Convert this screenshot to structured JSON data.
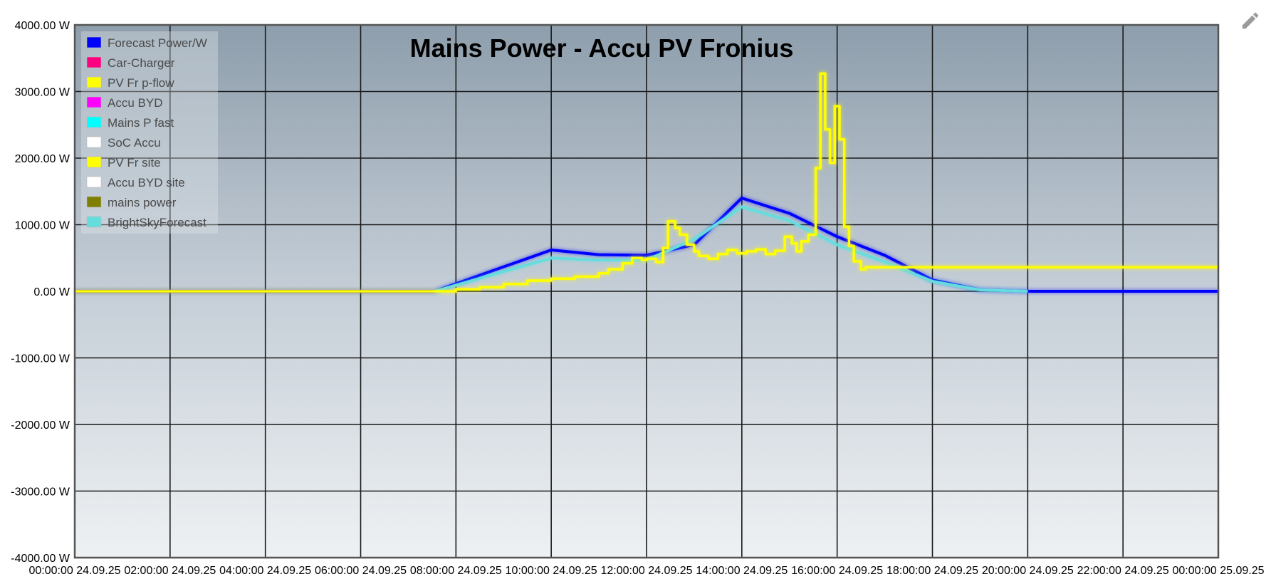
{
  "chart_data": {
    "type": "line",
    "title": "Mains Power - Accu PV Fronius",
    "ylabel": "",
    "xlabel": "",
    "ylim": [
      -4000,
      4000
    ],
    "grid": true,
    "legend_position": "top-left",
    "y_ticks": [
      {
        "value": 4000,
        "label": "4000.00 W"
      },
      {
        "value": 3000,
        "label": "3000.00 W"
      },
      {
        "value": 2000,
        "label": "2000.00 W"
      },
      {
        "value": 1000,
        "label": "1000.00 W"
      },
      {
        "value": 0,
        "label": "0.00 W"
      },
      {
        "value": -1000,
        "label": "-1000.00 W"
      },
      {
        "value": -2000,
        "label": "-2000.00 W"
      },
      {
        "value": -3000,
        "label": "-3000.00 W"
      },
      {
        "value": -4000,
        "label": "-4000.00 W"
      }
    ],
    "x_ticks": [
      {
        "hour": 0,
        "label": "00:00:00 24.09.25"
      },
      {
        "hour": 2,
        "label": "02:00:00 24.09.25"
      },
      {
        "hour": 4,
        "label": "04:00:00 24.09.25"
      },
      {
        "hour": 6,
        "label": "06:00:00 24.09.25"
      },
      {
        "hour": 8,
        "label": "08:00:00 24.09.25"
      },
      {
        "hour": 10,
        "label": "10:00:00 24.09.25"
      },
      {
        "hour": 12,
        "label": "12:00:00 24.09.25"
      },
      {
        "hour": 14,
        "label": "14:00:00 24.09.25"
      },
      {
        "hour": 16,
        "label": "16:00:00 24.09.25"
      },
      {
        "hour": 18,
        "label": "18:00:00 24.09.25"
      },
      {
        "hour": 20,
        "label": "20:00:00 24.09.25"
      },
      {
        "hour": 22,
        "label": "22:00:00 24.09.25"
      },
      {
        "hour": 24,
        "label": "00:00:00 25.09.25"
      }
    ],
    "xlim_hours": [
      0,
      24
    ],
    "legend": [
      {
        "name": "Forecast Power/W",
        "color": "#0000ff"
      },
      {
        "name": "Car-Charger",
        "color": "#ff0080"
      },
      {
        "name": "PV Fr p-flow",
        "color": "#ffff00"
      },
      {
        "name": "Accu BYD",
        "color": "#ff00ff"
      },
      {
        "name": "Mains P fast",
        "color": "#00ffff"
      },
      {
        "name": "SoC Accu",
        "color": "#ffffff"
      },
      {
        "name": "PV Fr site",
        "color": "#ffff00"
      },
      {
        "name": "Accu BYD site",
        "color": "#ffffff"
      },
      {
        "name": "mains power",
        "color": "#808000"
      },
      {
        "name": "BrightSkyForecast",
        "color": "#66dddd"
      }
    ],
    "series": [
      {
        "name": "Forecast Power/W",
        "color": "#0000ff",
        "step": false,
        "points": [
          [
            0,
            0
          ],
          [
            7.55,
            0
          ],
          [
            10,
            620
          ],
          [
            11,
            550
          ],
          [
            12,
            540
          ],
          [
            13,
            700
          ],
          [
            14,
            1400
          ],
          [
            15,
            1170
          ],
          [
            16,
            820
          ],
          [
            17,
            540
          ],
          [
            18,
            170
          ],
          [
            19,
            20
          ],
          [
            20,
            0
          ],
          [
            24,
            0
          ]
        ]
      },
      {
        "name": "BrightSkyForecast",
        "color": "#66dddd",
        "step": false,
        "points": [
          [
            7.55,
            0
          ],
          [
            10,
            500
          ],
          [
            11,
            470
          ],
          [
            12,
            470
          ],
          [
            13,
            780
          ],
          [
            14,
            1270
          ],
          [
            15,
            1060
          ],
          [
            16,
            700
          ],
          [
            17,
            440
          ],
          [
            18,
            150
          ],
          [
            19,
            20
          ],
          [
            20,
            0
          ]
        ]
      },
      {
        "name": "PV Fr site",
        "color": "#ffff00",
        "step": true,
        "points": [
          [
            0,
            0
          ],
          [
            7.6,
            0
          ],
          [
            8,
            30
          ],
          [
            8.5,
            60
          ],
          [
            9,
            110
          ],
          [
            9.5,
            160
          ],
          [
            10,
            190
          ],
          [
            10.5,
            220
          ],
          [
            11,
            270
          ],
          [
            11.2,
            330
          ],
          [
            11.5,
            420
          ],
          [
            11.7,
            500
          ],
          [
            11.9,
            470
          ],
          [
            12,
            490
          ],
          [
            12.2,
            440
          ],
          [
            12.35,
            650
          ],
          [
            12.45,
            1050
          ],
          [
            12.6,
            950
          ],
          [
            12.7,
            850
          ],
          [
            12.85,
            700
          ],
          [
            13,
            600
          ],
          [
            13.1,
            530
          ],
          [
            13.3,
            490
          ],
          [
            13.5,
            560
          ],
          [
            13.7,
            620
          ],
          [
            13.9,
            570
          ],
          [
            14.1,
            600
          ],
          [
            14.3,
            630
          ],
          [
            14.5,
            560
          ],
          [
            14.7,
            610
          ],
          [
            14.9,
            820
          ],
          [
            15.05,
            720
          ],
          [
            15.15,
            600
          ],
          [
            15.25,
            750
          ],
          [
            15.4,
            850
          ],
          [
            15.55,
            1850
          ],
          [
            15.65,
            3270
          ],
          [
            15.75,
            2430
          ],
          [
            15.85,
            1930
          ],
          [
            15.95,
            2780
          ],
          [
            16.05,
            2280
          ],
          [
            16.15,
            970
          ],
          [
            16.25,
            680
          ],
          [
            16.35,
            450
          ],
          [
            16.5,
            330
          ],
          [
            16.6,
            360
          ],
          [
            24,
            360
          ]
        ]
      }
    ]
  },
  "toolbar": {
    "edit_icon": "pencil-icon"
  }
}
